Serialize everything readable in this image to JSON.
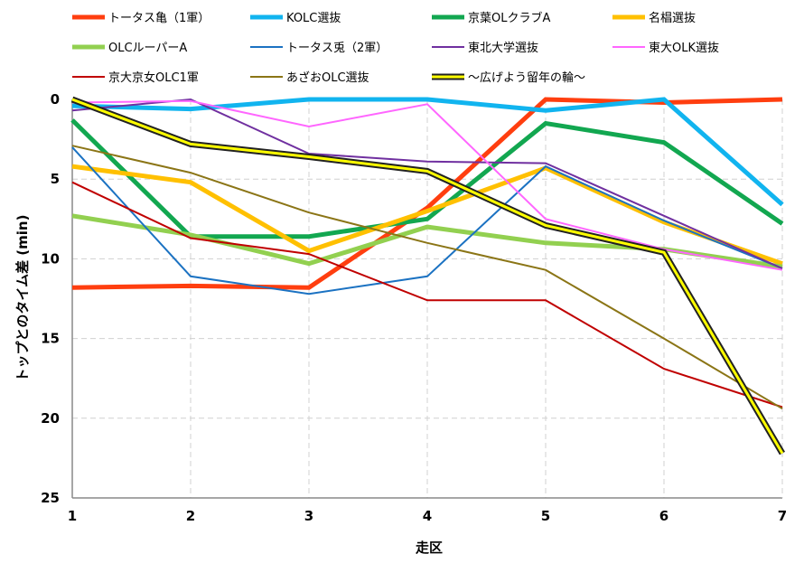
{
  "chart_data": {
    "type": "line",
    "xlabel": "走区",
    "ylabel": "トップとのタイム差 (min)",
    "x": [
      1,
      2,
      3,
      4,
      5,
      6,
      7
    ],
    "ylim": [
      0,
      25
    ],
    "y_inverted": true,
    "yticks": [
      0,
      5,
      10,
      15,
      20,
      25
    ],
    "grid": "dashed",
    "legend_position": "top",
    "series": [
      {
        "name": "トータス亀（1軍）",
        "color": "#ff3e0f",
        "width": 5,
        "values": [
          11.8,
          11.7,
          11.8,
          6.8,
          0.0,
          0.2,
          0.0
        ]
      },
      {
        "name": "KOLC選抜",
        "color": "#11b4ef",
        "width": 5,
        "values": [
          0.4,
          0.6,
          0.0,
          0.0,
          0.7,
          0.0,
          6.6
        ]
      },
      {
        "name": "京葉OLクラブA",
        "color": "#12a750",
        "width": 5,
        "values": [
          1.3,
          8.6,
          8.6,
          7.5,
          1.5,
          2.7,
          7.8
        ]
      },
      {
        "name": "名椙選抜",
        "color": "#ffc000",
        "width": 5,
        "values": [
          4.2,
          5.2,
          9.5,
          7.0,
          4.3,
          7.7,
          10.3
        ]
      },
      {
        "name": "OLCルーパーA",
        "color": "#92d050",
        "width": 5,
        "values": [
          7.3,
          8.5,
          10.3,
          8.0,
          9.0,
          9.4,
          10.5
        ]
      },
      {
        "name": "トータス兎（2軍）",
        "color": "#1b72c2",
        "width": 2,
        "values": [
          3.0,
          11.1,
          12.2,
          11.1,
          4.2,
          7.6,
          10.6
        ]
      },
      {
        "name": "東北大学選抜",
        "color": "#7030a0",
        "width": 2,
        "values": [
          0.7,
          0.0,
          3.4,
          3.9,
          4.0,
          7.3,
          10.6
        ]
      },
      {
        "name": "東大OLK選抜",
        "color": "#ff66ff",
        "width": 2,
        "values": [
          0.2,
          0.1,
          1.7,
          0.3,
          7.5,
          9.4,
          10.7
        ]
      },
      {
        "name": "京大京女OLC1軍",
        "color": "#c00000",
        "width": 2,
        "values": [
          5.2,
          8.7,
          9.7,
          12.6,
          12.6,
          16.9,
          19.3
        ]
      },
      {
        "name": "あざおOLC選抜",
        "color": "#8b7516",
        "width": 2,
        "values": [
          2.9,
          4.6,
          7.1,
          9.0,
          10.7,
          15.0,
          19.4
        ]
      },
      {
        "name": "～広げよう留年の輪～",
        "color": "#ffff00",
        "width": 3,
        "outline": "#222222",
        "values": [
          0.0,
          2.8,
          3.6,
          4.5,
          7.9,
          9.6,
          22.2
        ]
      }
    ]
  }
}
